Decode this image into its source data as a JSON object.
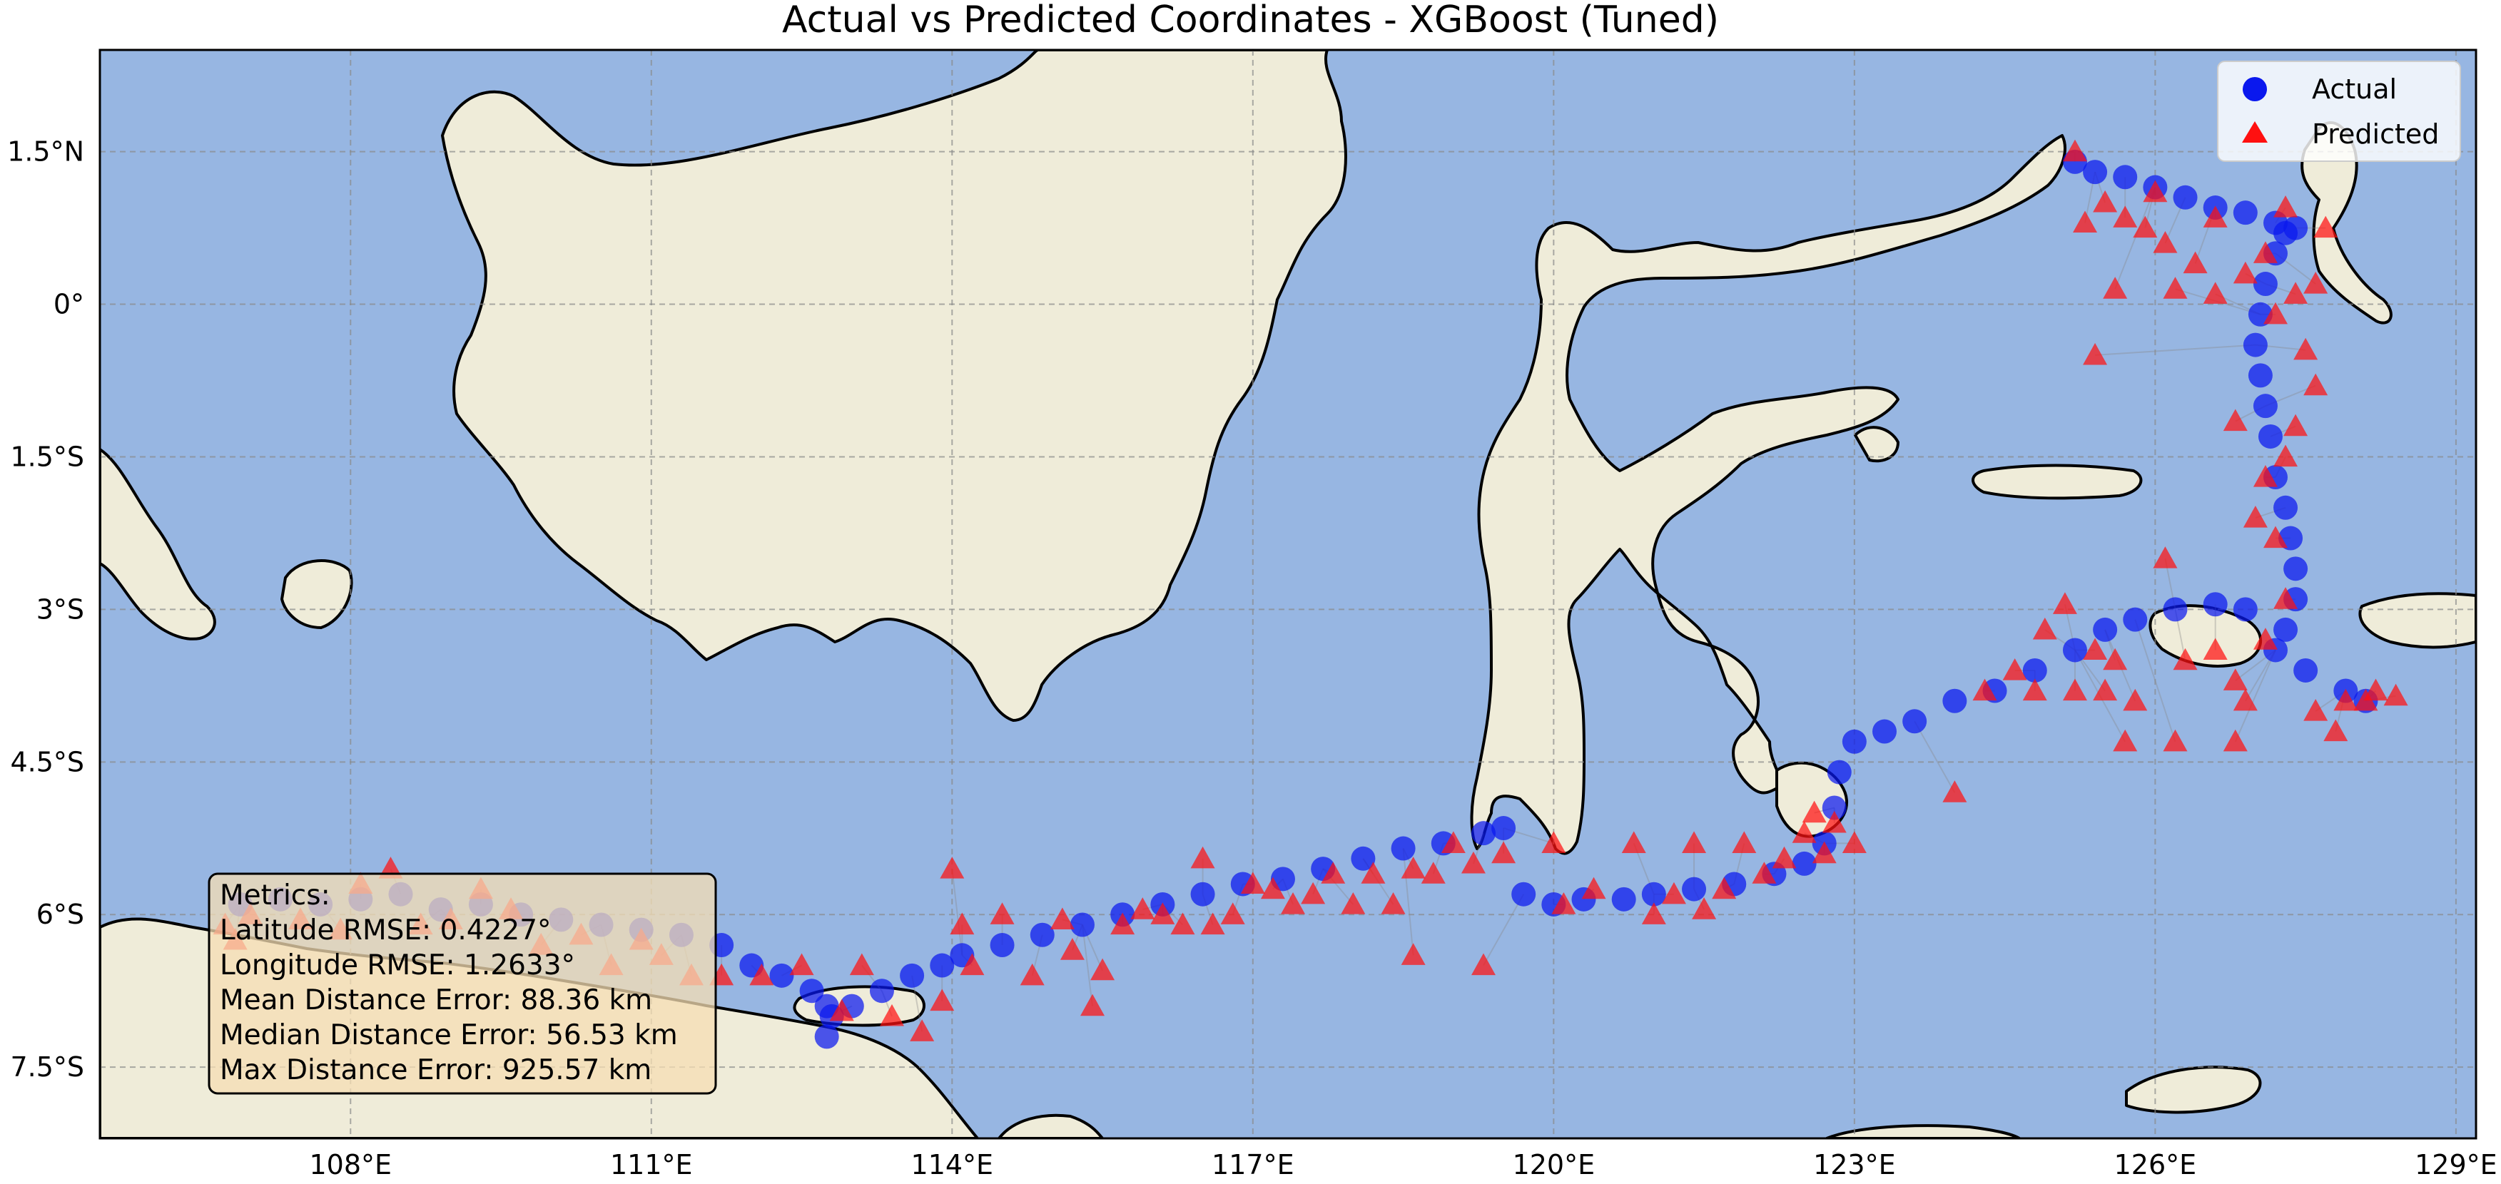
{
  "title": "Actual vs Predicted Coordinates - XGBoost (Tuned)",
  "colors": {
    "ocean": "#97b6e2",
    "land": "#efecd9",
    "actual": "#0a18ee",
    "predicted": "#ff1010"
  },
  "chart_data": {
    "type": "scatter",
    "projection": "PlateCarree",
    "xlim": [
      105.5,
      129.2
    ],
    "ylim": [
      -8.2,
      2.5
    ],
    "x_ticks": [
      {
        "value": 108,
        "label": "108°E"
      },
      {
        "value": 111,
        "label": "111°E"
      },
      {
        "value": 114,
        "label": "114°E"
      },
      {
        "value": 117,
        "label": "117°E"
      },
      {
        "value": 120,
        "label": "120°E"
      },
      {
        "value": 123,
        "label": "123°E"
      },
      {
        "value": 126,
        "label": "126°E"
      },
      {
        "value": 129,
        "label": "129°E"
      }
    ],
    "y_ticks": [
      {
        "value": 1.5,
        "label": "1.5°N"
      },
      {
        "value": 0,
        "label": "0°"
      },
      {
        "value": -1.5,
        "label": "1.5°S"
      },
      {
        "value": -3,
        "label": "3°S"
      },
      {
        "value": -4.5,
        "label": "4.5°S"
      },
      {
        "value": -6,
        "label": "6°S"
      },
      {
        "value": -7.5,
        "label": "7.5°S"
      }
    ],
    "grid": true,
    "legend_position": "top-right",
    "series": [
      {
        "name": "Actual",
        "marker": "circle",
        "points": [
          [
            106.9,
            -5.9
          ],
          [
            107.3,
            -5.85
          ],
          [
            107.7,
            -5.9
          ],
          [
            108.1,
            -5.85
          ],
          [
            108.5,
            -5.8
          ],
          [
            108.9,
            -5.95
          ],
          [
            109.3,
            -5.9
          ],
          [
            109.7,
            -6.0
          ],
          [
            110.1,
            -6.05
          ],
          [
            110.5,
            -6.1
          ],
          [
            110.9,
            -6.15
          ],
          [
            111.3,
            -6.2
          ],
          [
            111.7,
            -6.3
          ],
          [
            112.0,
            -6.5
          ],
          [
            112.3,
            -6.6
          ],
          [
            112.6,
            -6.75
          ],
          [
            112.75,
            -6.9
          ],
          [
            112.8,
            -7.0
          ],
          [
            112.75,
            -7.2
          ],
          [
            113.0,
            -6.9
          ],
          [
            113.3,
            -6.75
          ],
          [
            113.6,
            -6.6
          ],
          [
            113.9,
            -6.5
          ],
          [
            114.1,
            -6.4
          ],
          [
            114.5,
            -6.3
          ],
          [
            114.9,
            -6.2
          ],
          [
            115.3,
            -6.1
          ],
          [
            115.7,
            -6.0
          ],
          [
            116.1,
            -5.9
          ],
          [
            116.5,
            -5.8
          ],
          [
            116.9,
            -5.7
          ],
          [
            117.3,
            -5.65
          ],
          [
            117.7,
            -5.55
          ],
          [
            118.1,
            -5.45
          ],
          [
            118.5,
            -5.35
          ],
          [
            118.9,
            -5.3
          ],
          [
            119.3,
            -5.2
          ],
          [
            119.5,
            -5.15
          ],
          [
            119.7,
            -5.8
          ],
          [
            120.0,
            -5.9
          ],
          [
            120.3,
            -5.85
          ],
          [
            120.7,
            -5.85
          ],
          [
            121.0,
            -5.8
          ],
          [
            121.4,
            -5.75
          ],
          [
            121.8,
            -5.7
          ],
          [
            122.2,
            -5.6
          ],
          [
            122.5,
            -5.5
          ],
          [
            122.7,
            -5.3
          ],
          [
            122.8,
            -4.95
          ],
          [
            122.85,
            -4.6
          ],
          [
            123.0,
            -4.3
          ],
          [
            123.3,
            -4.2
          ],
          [
            123.6,
            -4.1
          ],
          [
            124.0,
            -3.9
          ],
          [
            124.4,
            -3.8
          ],
          [
            124.8,
            -3.6
          ],
          [
            125.2,
            -3.4
          ],
          [
            125.5,
            -3.2
          ],
          [
            125.8,
            -3.1
          ],
          [
            126.2,
            -3.0
          ],
          [
            126.6,
            -2.95
          ],
          [
            126.9,
            -3.0
          ],
          [
            127.2,
            -3.4
          ],
          [
            127.5,
            -3.6
          ],
          [
            127.9,
            -3.8
          ],
          [
            128.1,
            -3.9
          ],
          [
            127.3,
            -3.2
          ],
          [
            127.4,
            -2.9
          ],
          [
            127.4,
            -2.6
          ],
          [
            127.35,
            -2.3
          ],
          [
            127.3,
            -2.0
          ],
          [
            127.2,
            -1.7
          ],
          [
            127.15,
            -1.3
          ],
          [
            127.1,
            -1.0
          ],
          [
            127.05,
            -0.7
          ],
          [
            127.0,
            -0.4
          ],
          [
            127.05,
            -0.1
          ],
          [
            127.1,
            0.2
          ],
          [
            127.2,
            0.5
          ],
          [
            127.3,
            0.7
          ],
          [
            127.4,
            0.75
          ],
          [
            127.2,
            0.8
          ],
          [
            126.9,
            0.9
          ],
          [
            126.6,
            0.95
          ],
          [
            126.3,
            1.05
          ],
          [
            126.0,
            1.15
          ],
          [
            125.7,
            1.25
          ],
          [
            125.4,
            1.3
          ],
          [
            125.2,
            1.4
          ]
        ]
      },
      {
        "name": "Predicted",
        "marker": "triangle",
        "points": [
          [
            106.75,
            -6.1
          ],
          [
            106.85,
            -6.25
          ],
          [
            107.0,
            -6.0
          ],
          [
            107.5,
            -6.05
          ],
          [
            107.9,
            -6.15
          ],
          [
            108.1,
            -5.7
          ],
          [
            108.4,
            -5.55
          ],
          [
            108.7,
            -6.1
          ],
          [
            109.0,
            -6.05
          ],
          [
            109.3,
            -5.75
          ],
          [
            109.6,
            -5.95
          ],
          [
            109.9,
            -6.3
          ],
          [
            110.3,
            -6.2
          ],
          [
            110.6,
            -6.5
          ],
          [
            110.9,
            -6.25
          ],
          [
            111.1,
            -6.4
          ],
          [
            111.4,
            -6.6
          ],
          [
            111.7,
            -6.6
          ],
          [
            112.1,
            -6.6
          ],
          [
            112.5,
            -6.5
          ],
          [
            112.9,
            -6.95
          ],
          [
            113.1,
            -6.5
          ],
          [
            113.4,
            -7.0
          ],
          [
            113.7,
            -7.15
          ],
          [
            113.9,
            -6.85
          ],
          [
            114.0,
            -5.55
          ],
          [
            114.1,
            -6.1
          ],
          [
            114.2,
            -6.5
          ],
          [
            114.5,
            -6.0
          ],
          [
            114.8,
            -6.6
          ],
          [
            115.1,
            -6.05
          ],
          [
            115.2,
            -6.35
          ],
          [
            115.4,
            -6.9
          ],
          [
            115.5,
            -6.55
          ],
          [
            115.7,
            -6.1
          ],
          [
            115.9,
            -5.95
          ],
          [
            116.1,
            -6.0
          ],
          [
            116.3,
            -6.1
          ],
          [
            116.5,
            -5.45
          ],
          [
            116.6,
            -6.1
          ],
          [
            116.8,
            -6.0
          ],
          [
            117.0,
            -5.7
          ],
          [
            117.2,
            -5.75
          ],
          [
            117.4,
            -5.9
          ],
          [
            117.6,
            -5.8
          ],
          [
            117.8,
            -5.6
          ],
          [
            118.0,
            -5.9
          ],
          [
            118.2,
            -5.6
          ],
          [
            118.4,
            -5.9
          ],
          [
            118.6,
            -5.55
          ],
          [
            118.8,
            -5.6
          ],
          [
            119.0,
            -5.3
          ],
          [
            119.2,
            -5.5
          ],
          [
            119.3,
            -6.5
          ],
          [
            118.6,
            -6.4
          ],
          [
            119.5,
            -5.4
          ],
          [
            120.0,
            -5.3
          ],
          [
            120.1,
            -5.9
          ],
          [
            120.4,
            -5.75
          ],
          [
            120.8,
            -5.3
          ],
          [
            121.0,
            -6.0
          ],
          [
            121.2,
            -5.8
          ],
          [
            121.4,
            -5.3
          ],
          [
            121.5,
            -5.95
          ],
          [
            121.7,
            -5.75
          ],
          [
            121.9,
            -5.3
          ],
          [
            122.1,
            -5.6
          ],
          [
            122.3,
            -5.45
          ],
          [
            122.5,
            -5.2
          ],
          [
            122.7,
            -5.4
          ],
          [
            122.8,
            -5.1
          ],
          [
            123.0,
            -5.3
          ],
          [
            122.6,
            -5.0
          ],
          [
            124.0,
            -4.8
          ],
          [
            124.3,
            -3.8
          ],
          [
            124.6,
            -3.6
          ],
          [
            124.8,
            -3.8
          ],
          [
            124.9,
            -3.2
          ],
          [
            125.2,
            -3.8
          ],
          [
            125.5,
            -3.8
          ],
          [
            125.6,
            -3.5
          ],
          [
            125.8,
            -3.9
          ],
          [
            126.1,
            -2.5
          ],
          [
            126.3,
            -3.5
          ],
          [
            126.6,
            -3.4
          ],
          [
            126.8,
            -3.7
          ],
          [
            126.9,
            -3.9
          ],
          [
            127.1,
            -3.3
          ],
          [
            127.6,
            -4.0
          ],
          [
            127.8,
            -4.2
          ],
          [
            127.9,
            -3.9
          ],
          [
            128.1,
            -3.9
          ],
          [
            128.2,
            -3.8
          ],
          [
            128.4,
            -3.85
          ],
          [
            125.4,
            -3.4
          ],
          [
            125.1,
            -2.95
          ],
          [
            125.7,
            -4.3
          ],
          [
            126.2,
            -4.3
          ],
          [
            126.8,
            -4.3
          ],
          [
            127.3,
            -2.9
          ],
          [
            127.2,
            -2.3
          ],
          [
            127.0,
            -2.1
          ],
          [
            127.1,
            -1.7
          ],
          [
            126.8,
            -1.15
          ],
          [
            127.3,
            -1.5
          ],
          [
            127.4,
            -1.2
          ],
          [
            127.6,
            -0.8
          ],
          [
            127.5,
            -0.45
          ],
          [
            127.2,
            -0.1
          ],
          [
            127.4,
            0.1
          ],
          [
            127.6,
            0.2
          ],
          [
            127.1,
            0.5
          ],
          [
            126.9,
            0.3
          ],
          [
            126.6,
            0.1
          ],
          [
            126.4,
            0.4
          ],
          [
            126.2,
            0.15
          ],
          [
            126.1,
            0.6
          ],
          [
            125.9,
            0.75
          ],
          [
            125.7,
            0.85
          ],
          [
            125.5,
            1.0
          ],
          [
            125.3,
            0.8
          ],
          [
            125.6,
            0.15
          ],
          [
            125.4,
            -0.5
          ],
          [
            127.7,
            0.75
          ],
          [
            126.6,
            0.85
          ],
          [
            127.3,
            0.95
          ],
          [
            126.0,
            1.1
          ],
          [
            125.2,
            1.5
          ]
        ]
      }
    ],
    "annotation": {
      "lines": [
        "Metrics:",
        "Latitude RMSE: 0.4227°",
        "Longitude RMSE: 1.2633°",
        "Mean Distance Error: 88.36 km",
        "Median Distance Error: 56.53 km",
        "Max Distance Error: 925.57 km"
      ]
    }
  }
}
